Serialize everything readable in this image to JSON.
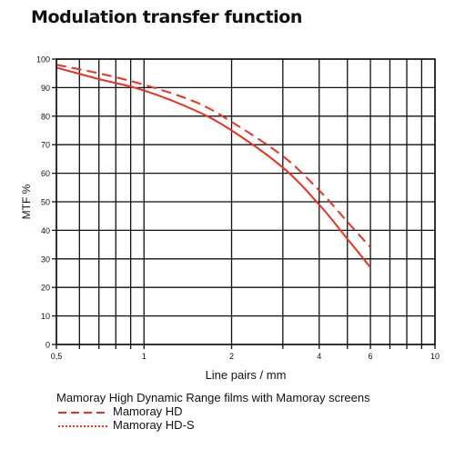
{
  "title": "Modulation transfer function",
  "chart_data": {
    "type": "line",
    "title": "Modulation transfer function",
    "xlabel": "Line pairs / mm",
    "ylabel": "MTF %",
    "x_scale": "log",
    "xlim": [
      0.5,
      10
    ],
    "ylim": [
      0,
      100
    ],
    "x_ticks": [
      0.5,
      0.6,
      0.7,
      0.8,
      0.9,
      1,
      2,
      3,
      4,
      5,
      6,
      7,
      8,
      9,
      10
    ],
    "x_tick_labels": [
      {
        "value": 0.5,
        "label": "0,5"
      },
      {
        "value": 1,
        "label": "1"
      },
      {
        "value": 2,
        "label": "2"
      },
      {
        "value": 4,
        "label": "4"
      },
      {
        "value": 6,
        "label": "6"
      },
      {
        "value": 10,
        "label": "10"
      }
    ],
    "y_ticks": [
      0,
      10,
      20,
      30,
      40,
      50,
      60,
      70,
      80,
      90,
      100
    ],
    "grid": true,
    "legend_title": "Mamoray High Dynamic Range films with Mamoray screens",
    "legend_position": "bottom",
    "series": [
      {
        "name": "Mamoray HD",
        "style": "dashed",
        "color": "#e8321e",
        "x": [
          0.5,
          0.7,
          1,
          1.5,
          2,
          3,
          4,
          5,
          6
        ],
        "y": [
          98,
          95,
          91,
          85,
          78,
          66,
          54,
          43,
          34
        ]
      },
      {
        "name": "Mamoray HD-S",
        "style": "solid",
        "color": "#e8321e",
        "x": [
          0.5,
          0.7,
          1,
          1.5,
          2,
          3,
          4,
          5,
          6
        ],
        "y": [
          97,
          93,
          89,
          82,
          75,
          62,
          49,
          37,
          27
        ]
      }
    ]
  }
}
